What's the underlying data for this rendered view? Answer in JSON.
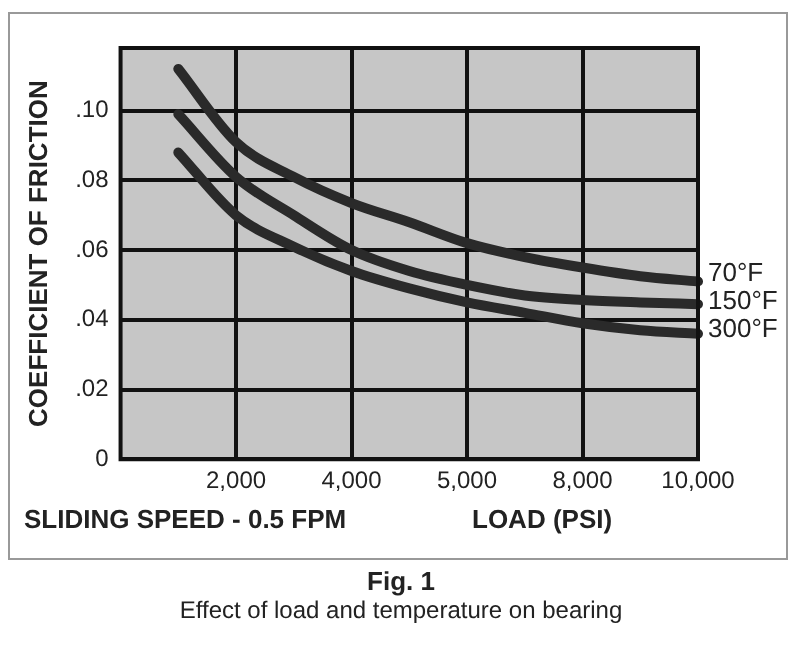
{
  "chart_data": {
    "type": "line",
    "title": "Fig. 1",
    "subtitle": "Effect of load and temperature on bearing",
    "ylabel": "COEFFICIENT OF FRICTION",
    "xlabel": "LOAD (PSI)",
    "annotations": [
      "SLIDING SPEED - 0.5 FPM"
    ],
    "categories": [
      null,
      null,
      "2,000",
      null,
      "4,000",
      null,
      "5,000",
      null,
      "8,000",
      null,
      "10,000"
    ],
    "series": [
      {
        "name": "70°F",
        "color": "#2a2a2a",
        "values": [
          null,
          0.112,
          0.091,
          0.081,
          0.0735,
          0.068,
          0.062,
          0.058,
          0.055,
          0.0525,
          0.051
        ]
      },
      {
        "name": "150°F",
        "color": "#2a2a2a",
        "values": [
          null,
          0.099,
          0.081,
          0.07,
          0.06,
          0.054,
          0.05,
          0.047,
          0.0457,
          0.045,
          0.0445
        ]
      },
      {
        "name": "300°F",
        "color": "#2a2a2a",
        "values": [
          null,
          0.088,
          0.07,
          0.061,
          0.054,
          0.049,
          0.045,
          0.042,
          0.039,
          0.037,
          0.036
        ]
      }
    ],
    "ylim": [
      0,
      0.118
    ],
    "yticks": [
      0,
      {
        "value": 0.02,
        "label": ".02"
      },
      {
        "value": 0.04,
        "label": ".04"
      },
      {
        "value": 0.06,
        "label": ".06"
      },
      {
        "value": 0.08,
        "label": ".08"
      },
      {
        "value": 0.1,
        "label": ".10"
      }
    ],
    "grid": true,
    "legend": false,
    "marker": "none",
    "line_style": "solid"
  }
}
